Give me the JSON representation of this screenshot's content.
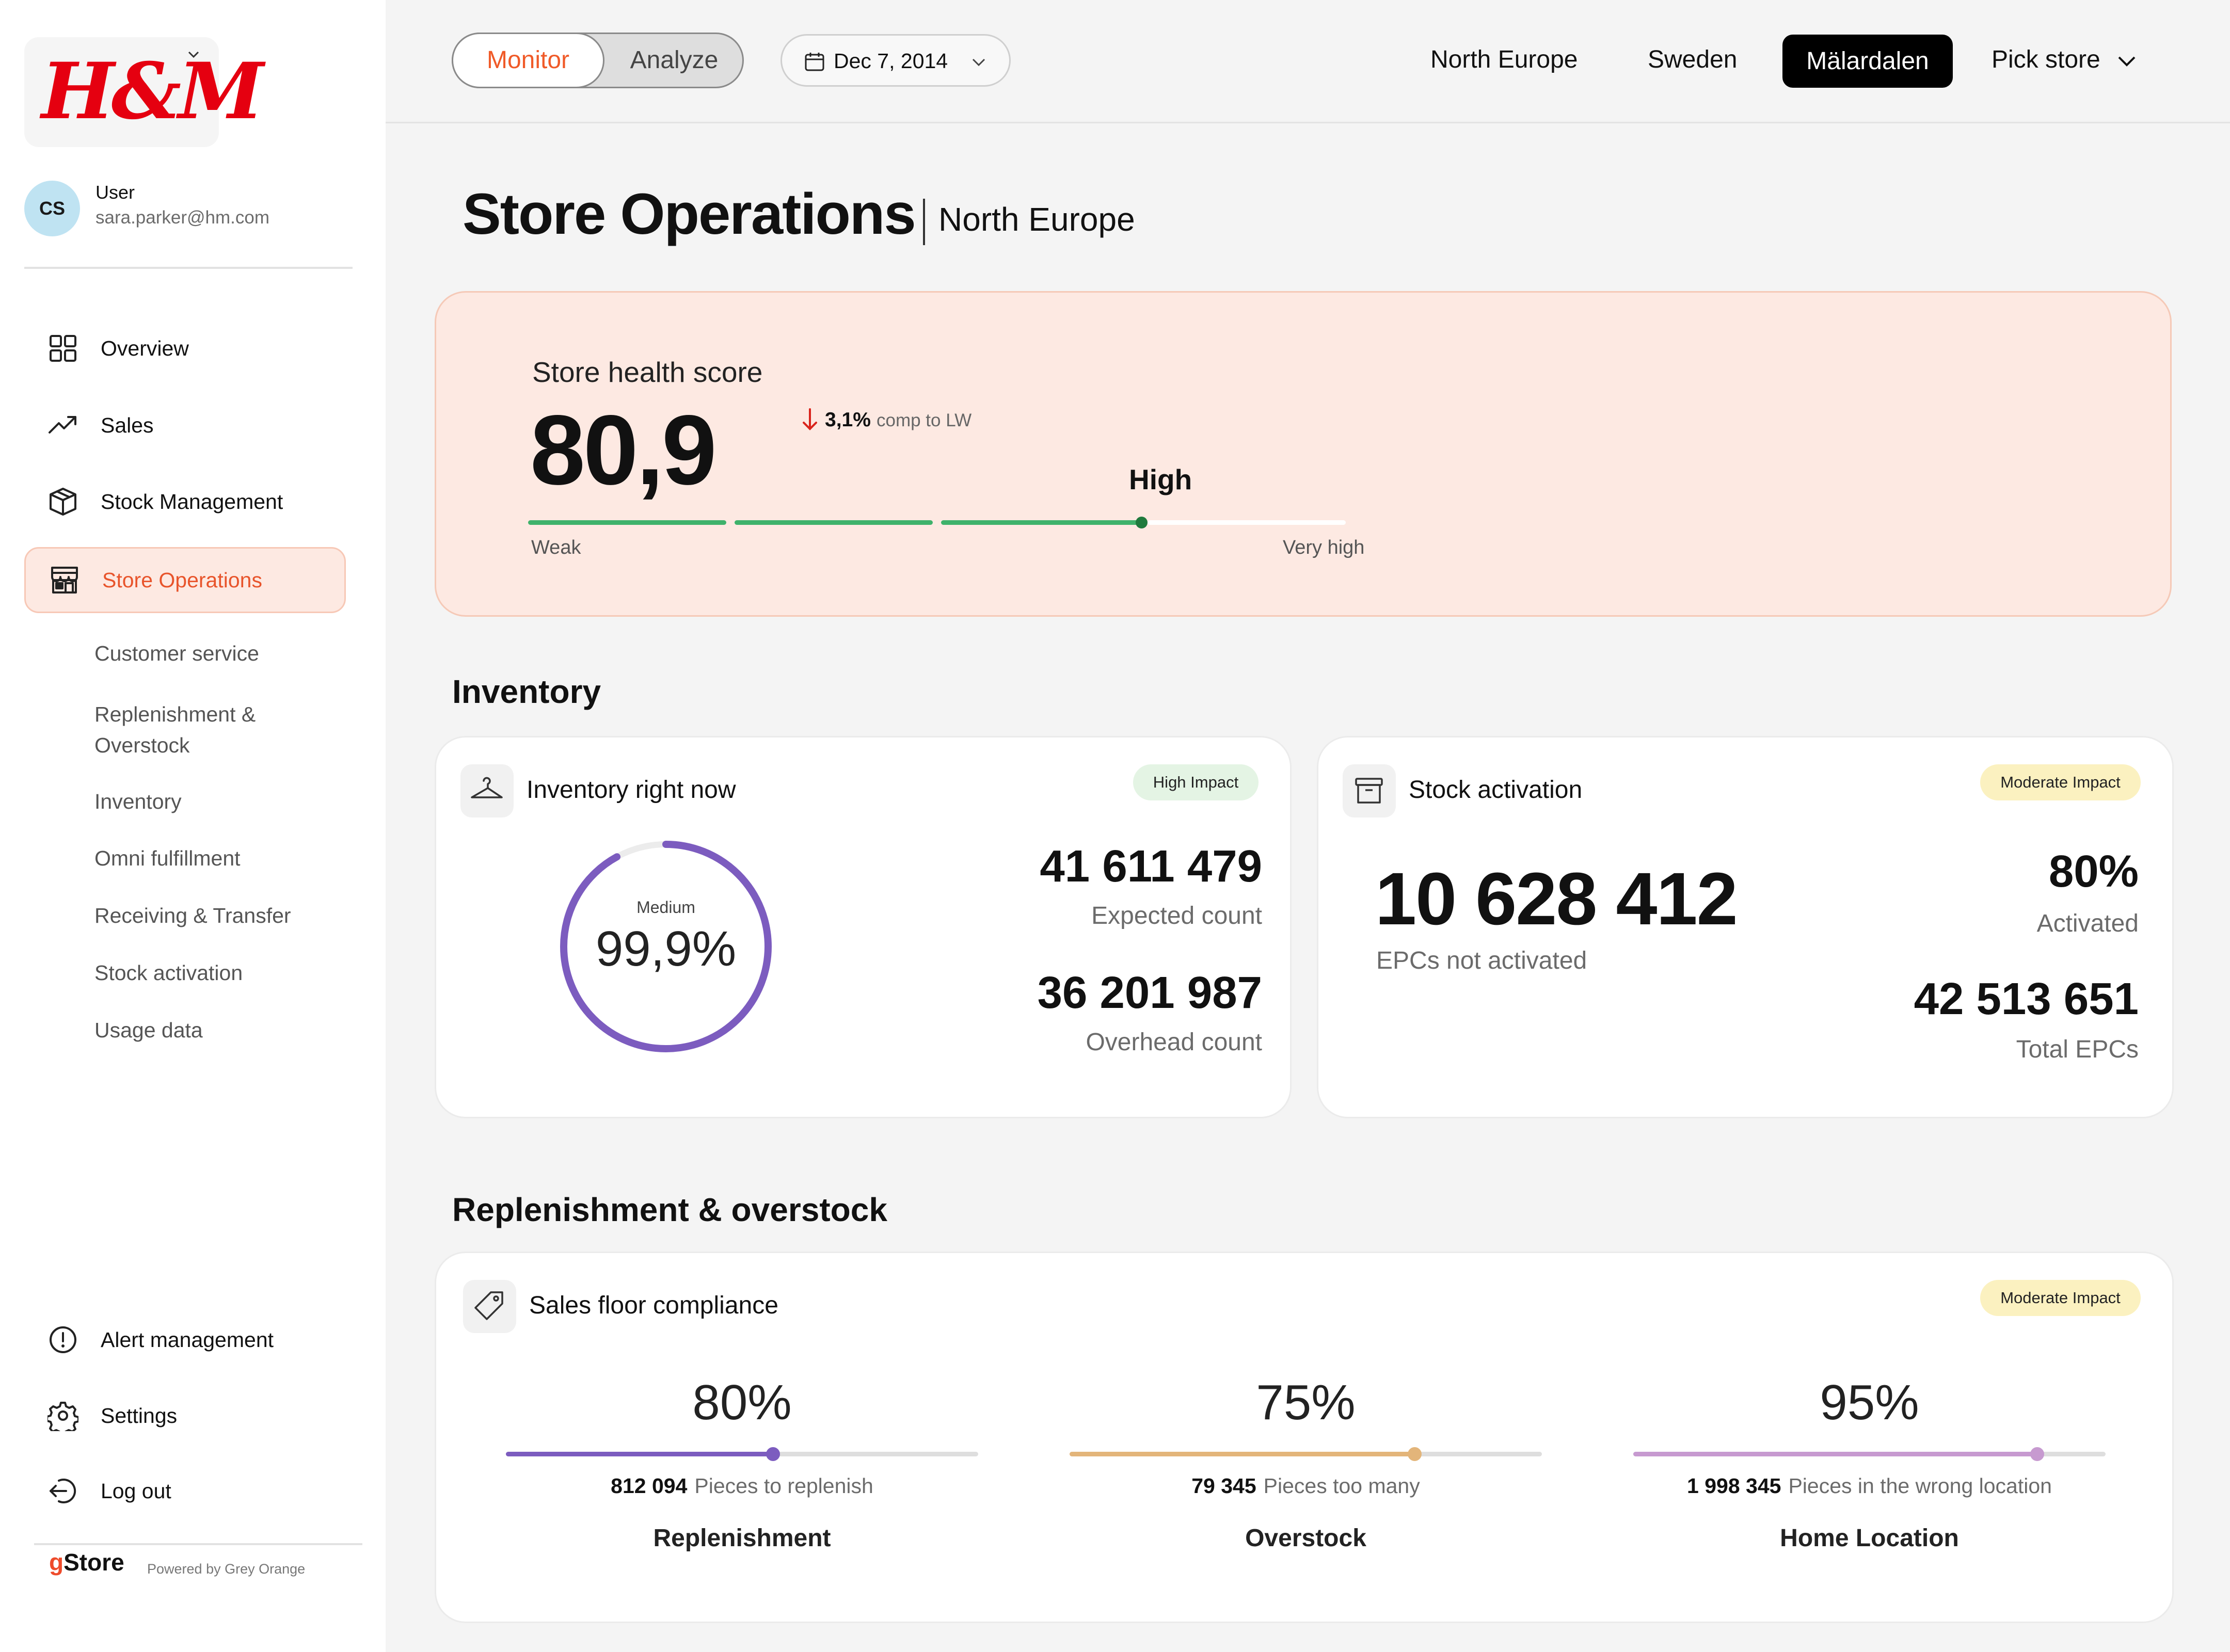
{
  "brand": {
    "logo_text": "H&M",
    "accent": "#e8542b"
  },
  "user": {
    "initials": "CS",
    "name": "User",
    "email": "sara.parker@hm.com"
  },
  "sidebar": {
    "items": [
      {
        "label": "Overview",
        "icon": "grid-icon"
      },
      {
        "label": "Sales",
        "icon": "trend-up-icon"
      },
      {
        "label": "Stock Management",
        "icon": "box-icon"
      },
      {
        "label": "Store Operations",
        "icon": "store-icon",
        "active": true
      }
    ],
    "sub_items": [
      "Customer service",
      "Replenishment &",
      "Overstock",
      "Inventory",
      "Omni fulfillment",
      "Receiving & Transfer",
      "Stock activation",
      "Usage data"
    ],
    "bottom_items": [
      {
        "label": "Alert management",
        "icon": "alert-circle-icon"
      },
      {
        "label": "Settings",
        "icon": "gear-icon"
      },
      {
        "label": "Log out",
        "icon": "logout-icon"
      }
    ],
    "footer": {
      "brand_g": "g",
      "brand_rest": "Store",
      "powered": "Powered by Grey Orange"
    }
  },
  "topbar": {
    "modes": [
      "Monitor",
      "Analyze"
    ],
    "active_mode": "Monitor",
    "date": "Dec 7, 2014",
    "breadcrumbs": [
      "North Europe",
      "Sweden",
      "Mälardalen",
      "Pick store"
    ],
    "active_crumb": "Mälardalen"
  },
  "page": {
    "title": "Store Operations",
    "subtitle": "North Europe"
  },
  "health": {
    "label": "Store health score",
    "score": "80,9",
    "delta": "3,1%",
    "delta_suffix": "comp to LW",
    "level": "High",
    "min_label": "Weak",
    "max_label": "Very high",
    "level_fraction": 0.75
  },
  "inventory": {
    "section": "Inventory",
    "now": {
      "title": "Inventory right now",
      "badge": "High Impact",
      "ring_label": "Medium",
      "ring_value": "99,9%",
      "ring_fraction": 0.92,
      "expected": "41 611 479",
      "expected_label": "Expected count",
      "overhead": "36 201 987",
      "overhead_label": "Overhead count"
    },
    "activation": {
      "title": "Stock activation",
      "badge": "Moderate Impact",
      "not_activated": "10 628 412",
      "not_activated_label": "EPCs not activated",
      "activated": "80%",
      "activated_label": "Activated",
      "total": "42 513 651",
      "total_label": "Total EPCs"
    }
  },
  "replenishment": {
    "section": "Replenishment & overstock",
    "title": "Sales floor compliance",
    "badge": "Moderate Impact",
    "metrics": [
      {
        "pct": "80%",
        "fraction": 0.565,
        "count": "812 094",
        "desc": "Pieces to replenish",
        "name": "Replenishment",
        "color": "#7c5cbf"
      },
      {
        "pct": "75%",
        "fraction": 0.73,
        "count": "79 345",
        "desc": "Pieces too many",
        "name": "Overstock",
        "color": "#e3b57a"
      },
      {
        "pct": "95%",
        "fraction": 0.855,
        "count": "1 998 345",
        "desc": "Pieces in the wrong location",
        "name": "Home Location",
        "color": "#c79ad0"
      }
    ]
  }
}
